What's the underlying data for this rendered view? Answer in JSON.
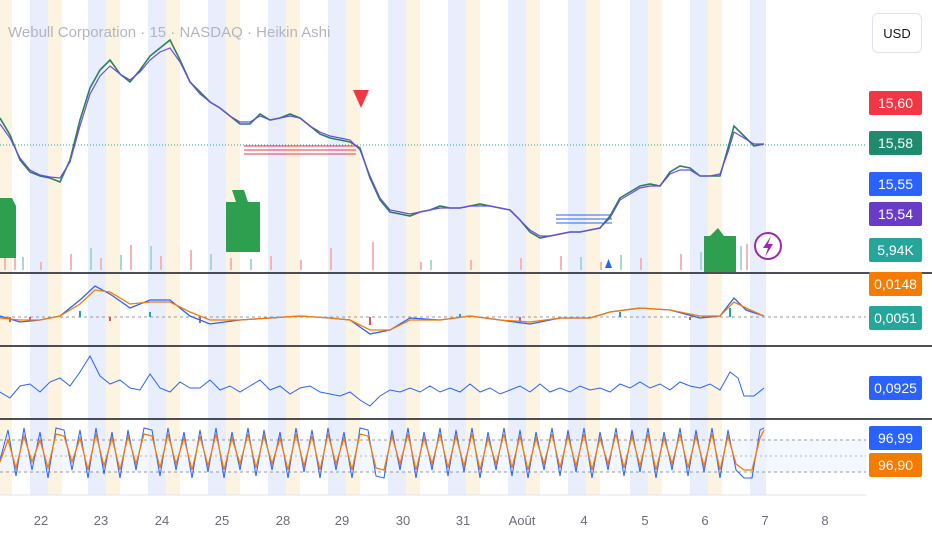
{
  "header": {
    "title": "Webull Corporation · 15 · NASDAQ · Heikin Ashi"
  },
  "toolbar": {
    "currency_label": "USD"
  },
  "price_labels": [
    {
      "value": "15,60",
      "color": "#f23645"
    },
    {
      "value": "15,58",
      "color": "#1e8b6e"
    },
    {
      "value": "15,55",
      "color": "#2962ff"
    },
    {
      "value": "15,54",
      "color": "#6a3bc7"
    },
    {
      "value": "5,94K",
      "color": "#26a69a"
    }
  ],
  "macd_labels": [
    {
      "value": "0,0148",
      "color": "#f57c00"
    },
    {
      "value": "0,0051",
      "color": "#26a69a"
    }
  ],
  "volatility_label": {
    "value": "0,0925",
    "color": "#2962ff"
  },
  "stoch_labels": [
    {
      "value": "96,99",
      "color": "#2962ff"
    },
    {
      "value": "96,90",
      "color": "#f57c00"
    }
  ],
  "x_axis": [
    "22",
    "23",
    "24",
    "25",
    "28",
    "29",
    "30",
    "31",
    "Août",
    "4",
    "5",
    "6",
    "7",
    "8"
  ],
  "chart_data": {
    "type": "line",
    "series": [
      {
        "x": [
          "22",
          "23",
          "24",
          "25",
          "28",
          "29",
          "30",
          "31",
          "Août",
          "4",
          "5",
          "6",
          "7"
        ],
        "values": [
          15.48,
          15.72,
          15.72,
          15.62,
          15.6,
          15.58,
          15.4,
          15.41,
          15.4,
          15.38,
          15.48,
          15.52,
          15.58
        ]
      }
    ]
  }
}
